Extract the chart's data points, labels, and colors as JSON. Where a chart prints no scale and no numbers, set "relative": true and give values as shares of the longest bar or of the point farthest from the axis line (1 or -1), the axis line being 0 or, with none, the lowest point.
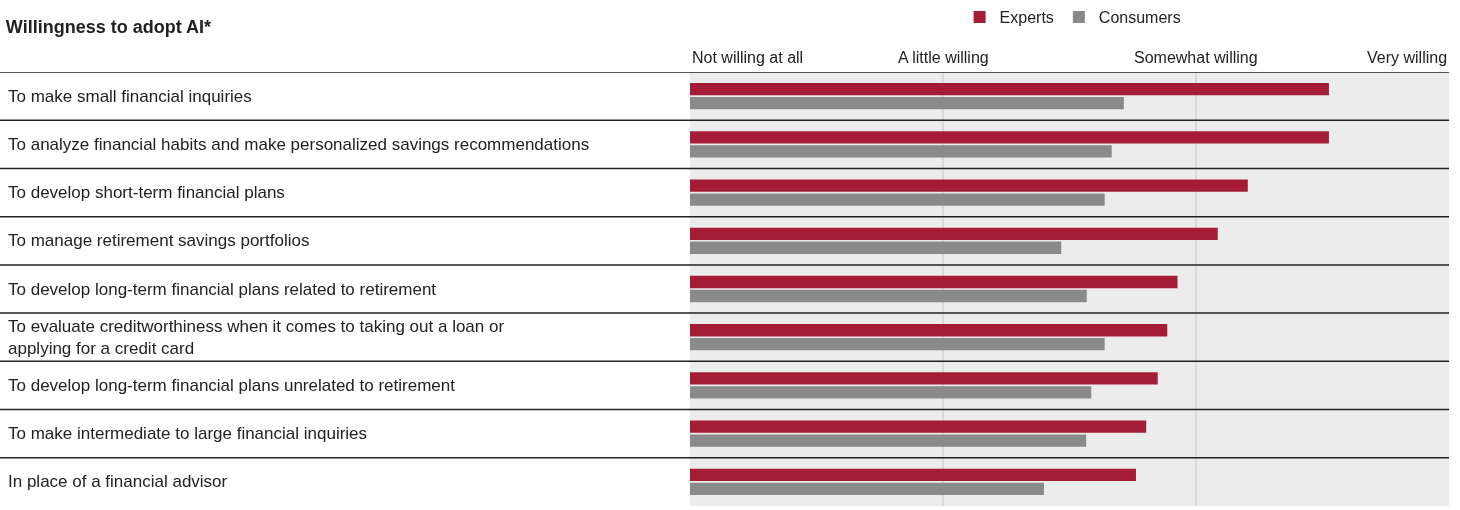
{
  "chart_data": {
    "type": "bar",
    "orientation": "horizontal",
    "relative": true,
    "title": "Willingness to adopt AI*",
    "categories": [
      "To make small financial inquiries",
      "To analyze financial habits and make personalized savings recommendations",
      "To develop short-term financial plans",
      "To manage retirement savings portfolios",
      "To develop long-term financial plans related to retirement",
      "To evaluate creditworthiness when it comes to taking out a loan or applying for a credit card",
      "To develop long-term financial plans unrelated to retirement",
      "To make intermediate to large financial inquiries",
      "In place of a financial advisor"
    ],
    "series": [
      {
        "name": "Experts",
        "color": "#a51c36",
        "values": [
          1,
          1,
          0.873,
          0.826,
          0.763,
          0.747,
          0.732,
          0.714,
          0.698
        ]
      },
      {
        "name": "Consumers",
        "color": "#8a8a8b",
        "values": [
          0.679,
          0.66,
          0.649,
          0.581,
          0.621,
          0.649,
          0.628,
          0.62,
          0.554
        ]
      }
    ],
    "annotations": [
      "Not willing at all",
      "A little willing",
      "Somewhat willing",
      "Very willing"
    ],
    "ref_lines": [
      {
        "axis": "x",
        "value": 0.396,
        "color": "#c8c8c8"
      },
      {
        "axis": "x",
        "value": 0.792,
        "color": "#c8c8c8"
      }
    ],
    "legend": "top"
  }
}
